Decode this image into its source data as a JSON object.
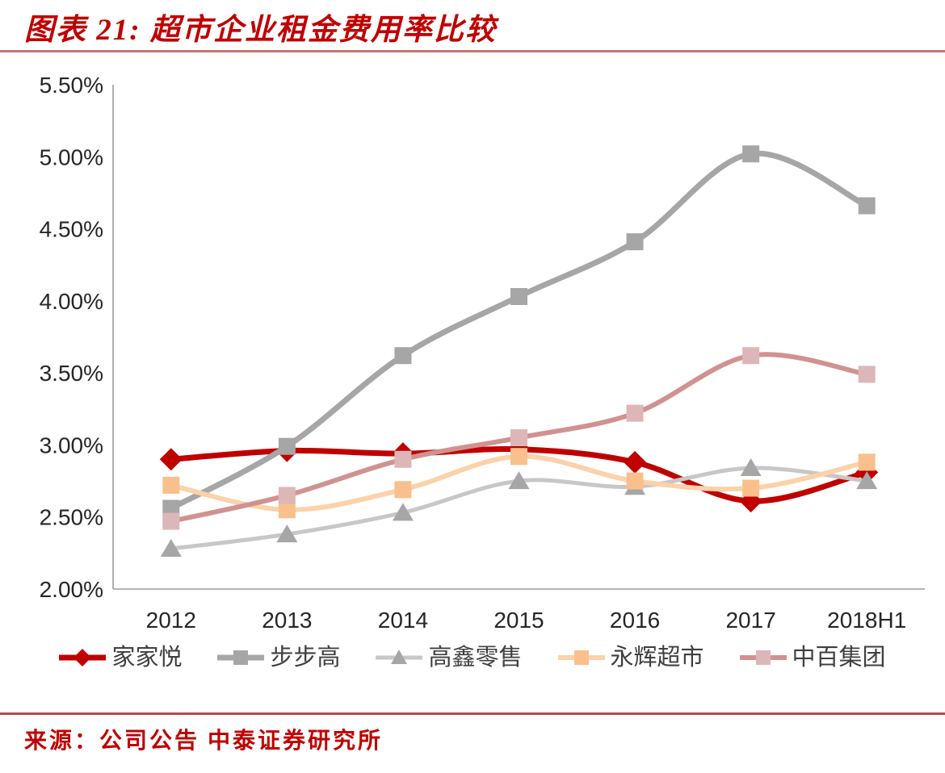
{
  "header": {
    "title": "图表 21:  超市企业租金费用率比较"
  },
  "footer": {
    "source": "来源：公司公告 中泰证券研究所"
  },
  "colors": {
    "accent_red": "#c00000",
    "rule_top": "#d06f6e",
    "rule_bottom": "#b94a48",
    "axis": "#9b9b9b",
    "tick_text": "#262626",
    "legend_text": "#3f3f3f"
  },
  "chart_data": {
    "type": "line",
    "title": "超市企业租金费用率比较",
    "categories": [
      "2012",
      "2013",
      "2014",
      "2015",
      "2016",
      "2017",
      "2018H1"
    ],
    "series": [
      {
        "name": "家家悦",
        "values": [
          2.9,
          2.96,
          2.94,
          2.97,
          2.88,
          2.61,
          2.81
        ],
        "color": "#c00000",
        "marker_color": "#c00000",
        "marker": "diamond",
        "line_width": 7
      },
      {
        "name": "步步高",
        "values": [
          2.56,
          2.99,
          3.62,
          4.03,
          4.41,
          5.02,
          4.66
        ],
        "color": "#a6a6a6",
        "marker_color": "#a6a6a6",
        "marker": "square",
        "line_width": 7
      },
      {
        "name": "高鑫零售",
        "values": [
          2.28,
          2.38,
          2.53,
          2.75,
          2.71,
          2.84,
          2.75
        ],
        "color": "#c7c7c7",
        "marker_color": "#a6a6a6",
        "marker": "triangle",
        "line_width": 5
      },
      {
        "name": "永辉超市",
        "values": [
          2.72,
          2.55,
          2.69,
          2.92,
          2.75,
          2.7,
          2.88
        ],
        "color": "#fbd2a9",
        "marker_color": "#f9c08d",
        "marker": "square",
        "line_width": 6
      },
      {
        "name": "中百集团",
        "values": [
          2.47,
          2.65,
          2.9,
          3.05,
          3.22,
          3.62,
          3.49
        ],
        "color": "#d09290",
        "marker_color": "#ddb6b8",
        "marker": "square",
        "line_width": 6
      }
    ],
    "xlabel": "",
    "ylabel": "",
    "ylim": [
      2.0,
      5.5
    ],
    "ytick_step": 0.5,
    "yticks": [
      "2.00%",
      "2.50%",
      "3.00%",
      "3.50%",
      "4.00%",
      "4.50%",
      "5.00%",
      "5.50%"
    ],
    "grid": false,
    "smooth": true,
    "legend_position": "bottom"
  }
}
